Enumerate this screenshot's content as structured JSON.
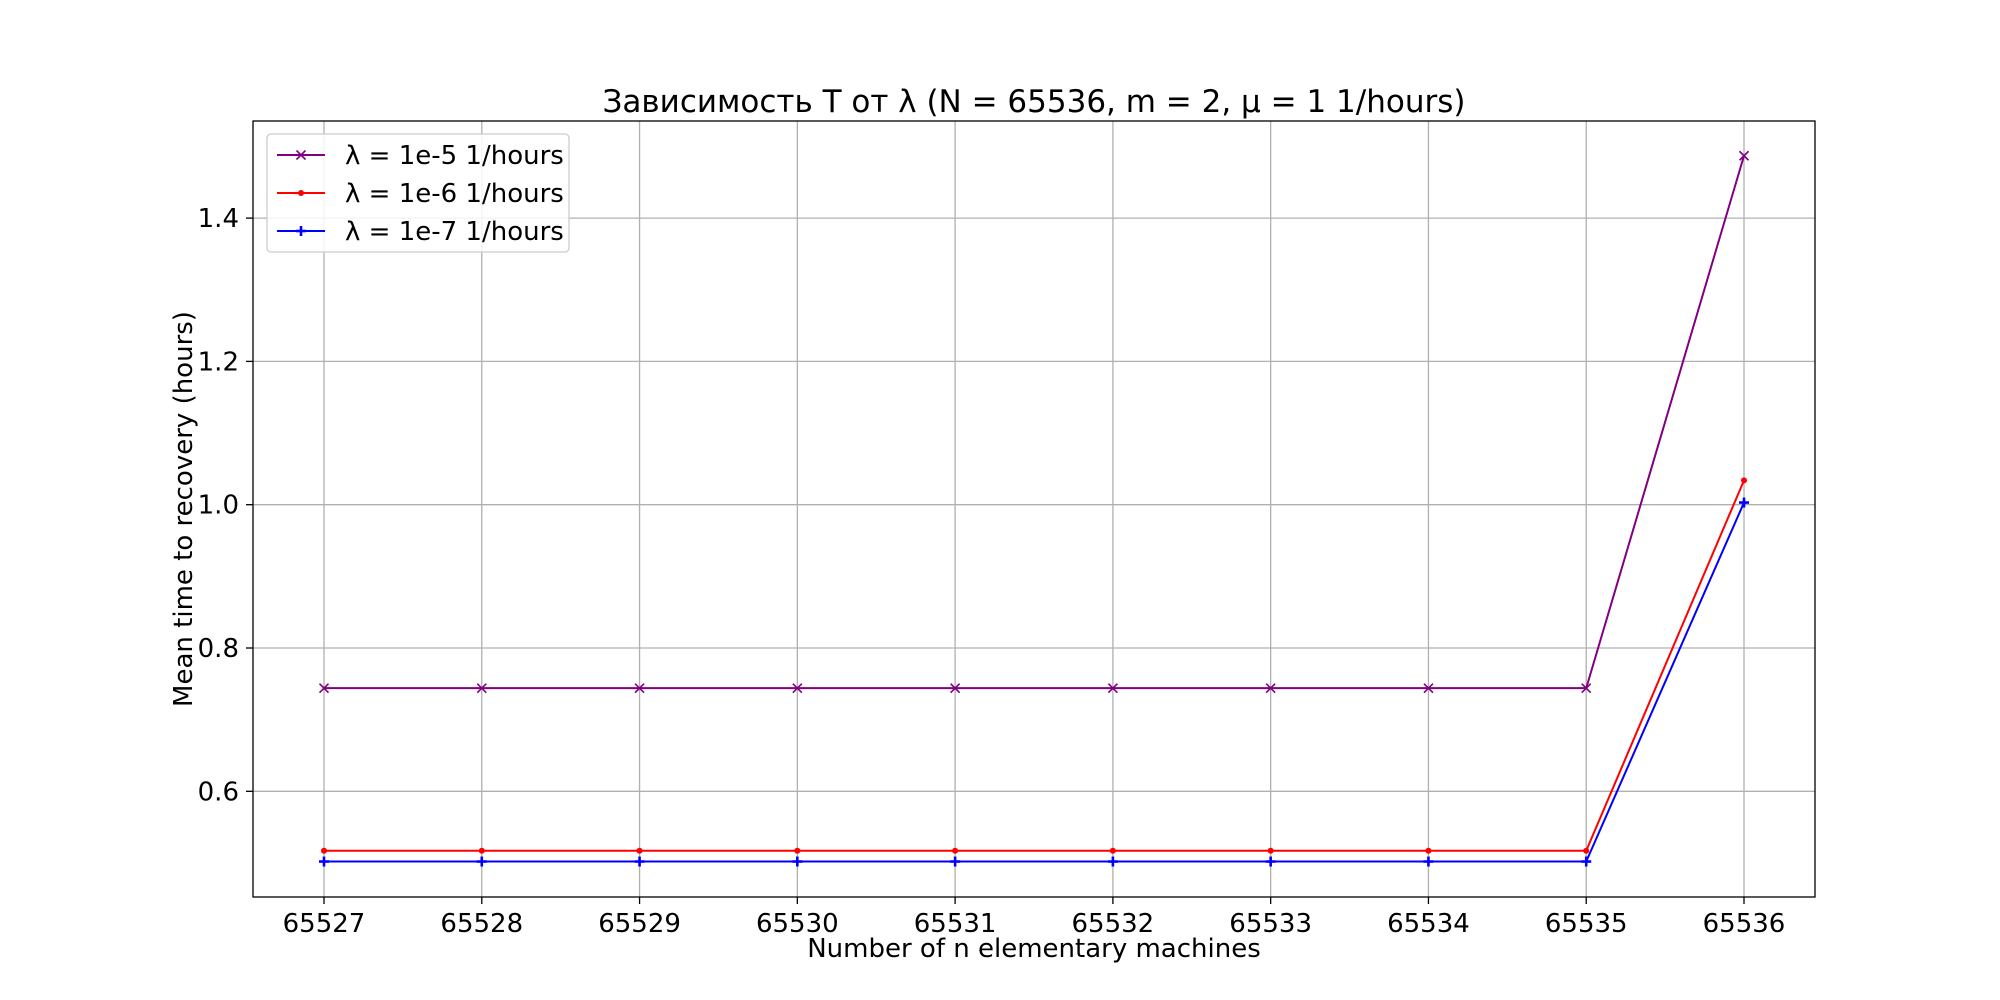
{
  "chart_data": {
    "type": "line",
    "title": "Зависимость T от λ (N = 65536, m = 2, μ = 1 1/hours)",
    "xlabel": "Number of n elementary machines",
    "ylabel": "Mean time to recovery (hours)",
    "x": [
      65527,
      65528,
      65529,
      65530,
      65531,
      65532,
      65533,
      65534,
      65535,
      65536
    ],
    "x_tick_labels": [
      "65527",
      "65528",
      "65529",
      "65530",
      "65531",
      "65532",
      "65533",
      "65534",
      "65535",
      "65536"
    ],
    "y_ticks": [
      0.6,
      0.8,
      1.0,
      1.2,
      1.4
    ],
    "y_tick_labels": [
      "0.6",
      "0.8",
      "1.0",
      "1.2",
      "1.4"
    ],
    "xlim": [
      65526.55,
      65536.45
    ],
    "ylim": [
      0.4525,
      1.5355
    ],
    "grid": true,
    "legend_position": "top-left",
    "series": [
      {
        "name": "λ = 1e-5 1/hours",
        "color": "#800080",
        "marker": "x",
        "values": [
          0.744,
          0.744,
          0.744,
          0.744,
          0.744,
          0.744,
          0.744,
          0.744,
          0.744,
          1.487
        ]
      },
      {
        "name": "λ = 1e-6 1/hours",
        "color": "#ff0000",
        "marker": "dot",
        "values": [
          0.517,
          0.517,
          0.517,
          0.517,
          0.517,
          0.517,
          0.517,
          0.517,
          0.517,
          1.034
        ]
      },
      {
        "name": "λ = 1e-7 1/hours",
        "color": "#0000ff",
        "marker": "plus",
        "values": [
          0.502,
          0.502,
          0.502,
          0.502,
          0.502,
          0.502,
          0.502,
          0.502,
          0.502,
          1.003
        ]
      }
    ]
  }
}
